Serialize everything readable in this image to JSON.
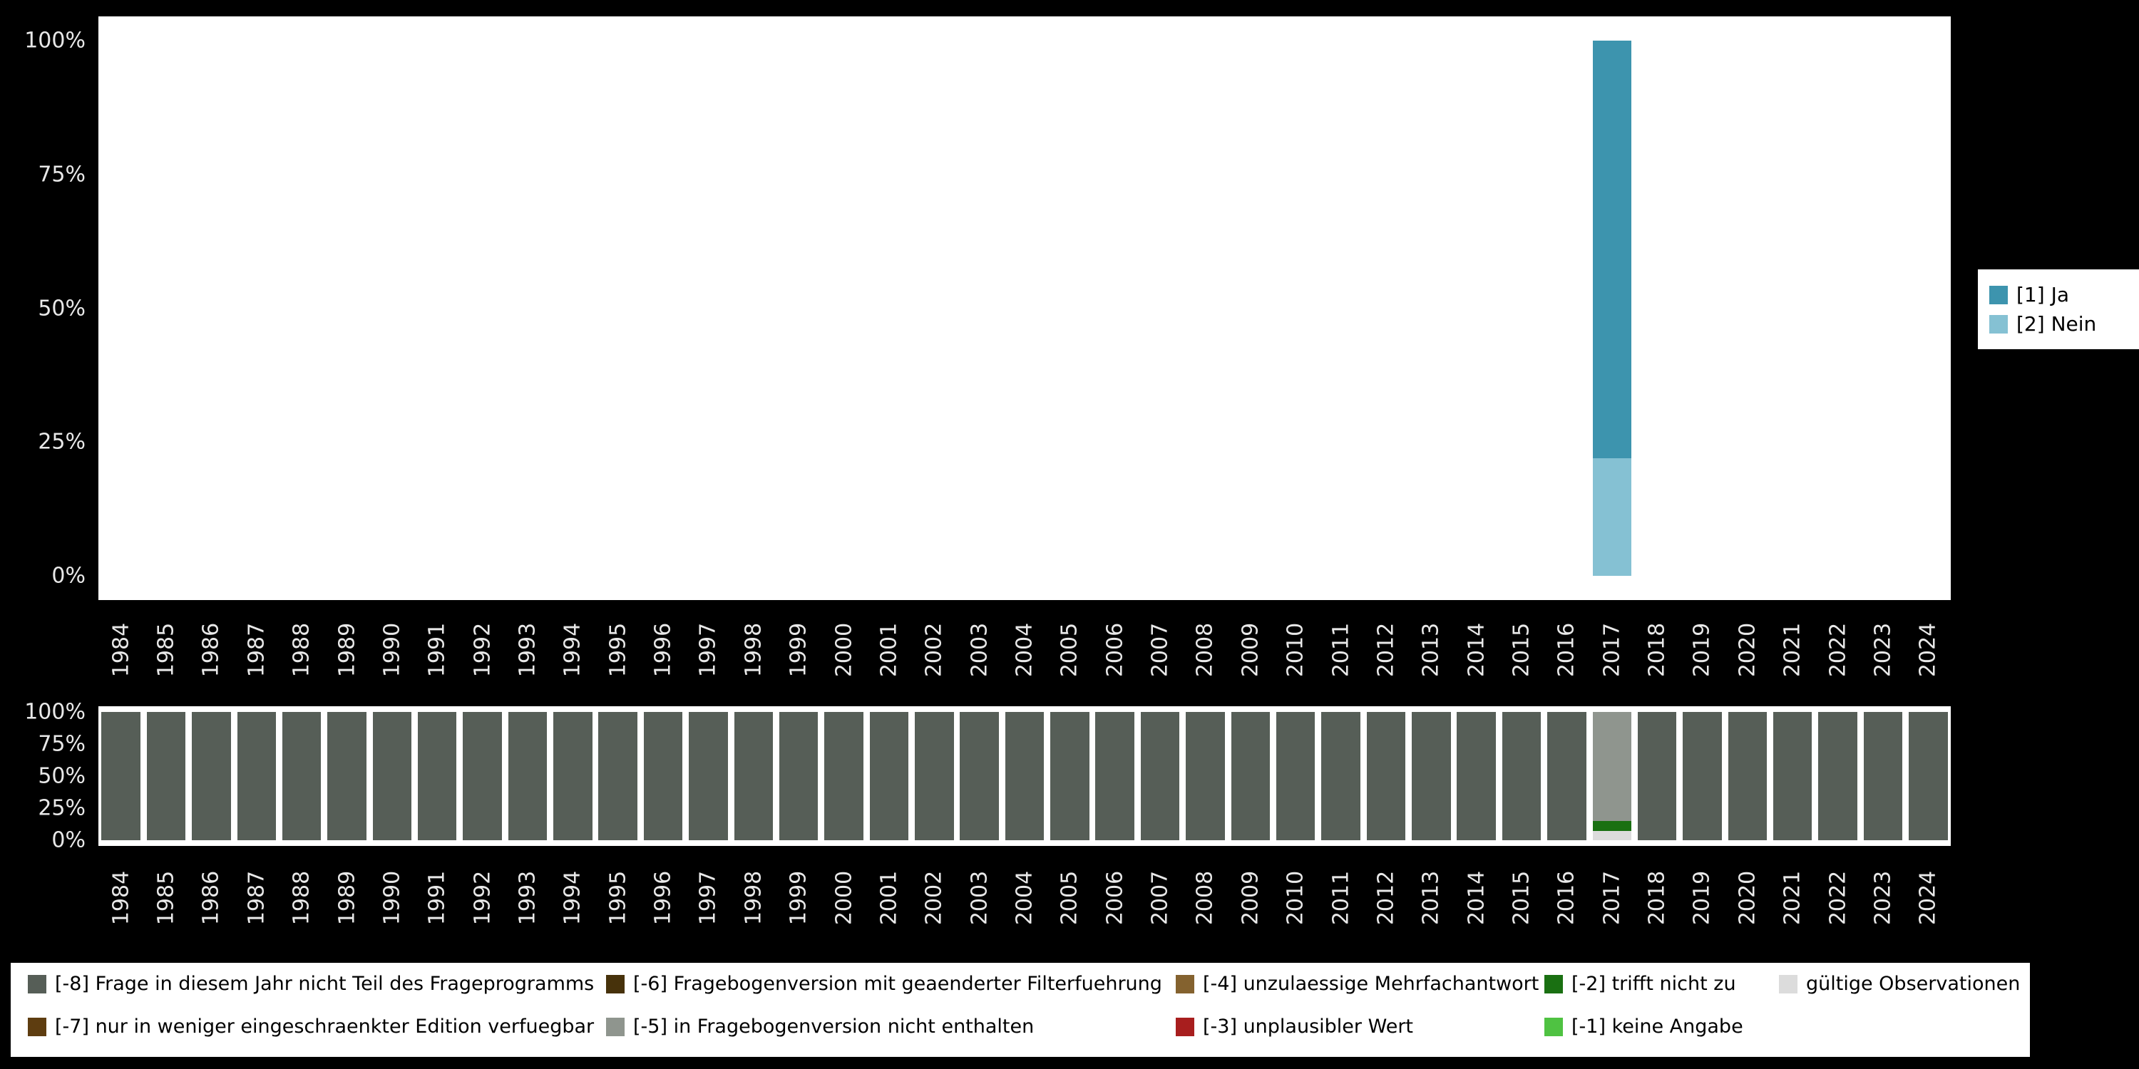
{
  "axes": {
    "y_ticks_top_to_bottom": [
      "100%",
      "75%",
      "50%",
      "25%",
      "0%"
    ]
  },
  "top_legend": {
    "items": [
      {
        "label": "[1] Ja",
        "color": "#3d94ae"
      },
      {
        "label": "[2] Nein",
        "color": "#85c1d3"
      }
    ]
  },
  "missing_legend": {
    "items": [
      {
        "label": "[-8] Frage in diesem Jahr nicht Teil des Frageprogramms",
        "color": "#565e57",
        "col": 0,
        "row": 0
      },
      {
        "label": "[-7] nur in weniger eingeschraenkter Edition verfuegbar",
        "color": "#5e3d10",
        "col": 0,
        "row": 1
      },
      {
        "label": "[-6] Fragebogenversion mit geaenderter Filterfuehrung",
        "color": "#47320b",
        "col": 1,
        "row": 0
      },
      {
        "label": "[-5] in Fragebogenversion nicht enthalten",
        "color": "#8f958e",
        "col": 1,
        "row": 1
      },
      {
        "label": "[-4] unzulaessige Mehrfachantwort",
        "color": "#84622f",
        "col": 2,
        "row": 0
      },
      {
        "label": "[-3] unplausibler Wert",
        "color": "#a81e1e",
        "col": 2,
        "row": 1
      },
      {
        "label": "[-2] trifft nicht zu",
        "color": "#1a7012",
        "col": 3,
        "row": 0
      },
      {
        "label": "[-1] keine Angabe",
        "color": "#4fc242",
        "col": 3,
        "row": 1
      },
      {
        "label": "gültige Observationen",
        "color": "#dcdcdc",
        "col": 4,
        "row": 0
      }
    ]
  },
  "chart_data": [
    {
      "type": "bar",
      "stacked": true,
      "title": "",
      "xlabel": "",
      "ylabel": "",
      "ylim": [
        0,
        100
      ],
      "grid": false,
      "legend_position": "right",
      "y_ticks": [
        "100%",
        "75%",
        "50%",
        "25%",
        "0%"
      ],
      "categories": [
        "1984",
        "1985",
        "1986",
        "1987",
        "1988",
        "1989",
        "1990",
        "1991",
        "1992",
        "1993",
        "1994",
        "1995",
        "1996",
        "1997",
        "1998",
        "1999",
        "2000",
        "2001",
        "2002",
        "2003",
        "2004",
        "2005",
        "2006",
        "2007",
        "2008",
        "2009",
        "2010",
        "2011",
        "2012",
        "2013",
        "2014",
        "2015",
        "2016",
        "2017",
        "2018",
        "2019",
        "2020",
        "2021",
        "2022",
        "2023",
        "2024"
      ],
      "series": [
        {
          "name": "[1] Ja",
          "color": "#3d94ae",
          "values": [
            0,
            0,
            0,
            0,
            0,
            0,
            0,
            0,
            0,
            0,
            0,
            0,
            0,
            0,
            0,
            0,
            0,
            0,
            0,
            0,
            0,
            0,
            0,
            0,
            0,
            0,
            0,
            0,
            0,
            0,
            0,
            0,
            0,
            78,
            0,
            0,
            0,
            0,
            0,
            0,
            0
          ]
        },
        {
          "name": "[2] Nein",
          "color": "#85c1d3",
          "values": [
            0,
            0,
            0,
            0,
            0,
            0,
            0,
            0,
            0,
            0,
            0,
            0,
            0,
            0,
            0,
            0,
            0,
            0,
            0,
            0,
            0,
            0,
            0,
            0,
            0,
            0,
            0,
            0,
            0,
            0,
            0,
            0,
            0,
            22,
            0,
            0,
            0,
            0,
            0,
            0,
            0
          ]
        }
      ]
    },
    {
      "type": "bar",
      "stacked": true,
      "title": "",
      "xlabel": "",
      "ylabel": "",
      "ylim": [
        0,
        100
      ],
      "grid": false,
      "legend_position": "bottom",
      "y_ticks": [
        "100%",
        "75%",
        "50%",
        "25%",
        "0%"
      ],
      "categories": [
        "1984",
        "1985",
        "1986",
        "1987",
        "1988",
        "1989",
        "1990",
        "1991",
        "1992",
        "1993",
        "1994",
        "1995",
        "1996",
        "1997",
        "1998",
        "1999",
        "2000",
        "2001",
        "2002",
        "2003",
        "2004",
        "2005",
        "2006",
        "2007",
        "2008",
        "2009",
        "2010",
        "2011",
        "2012",
        "2013",
        "2014",
        "2015",
        "2016",
        "2017",
        "2018",
        "2019",
        "2020",
        "2021",
        "2022",
        "2023",
        "2024"
      ],
      "series": [
        {
          "name": "[-8] Frage in diesem Jahr nicht Teil des Frageprogramms",
          "color": "#565e57",
          "values": [
            100,
            100,
            100,
            100,
            100,
            100,
            100,
            100,
            100,
            100,
            100,
            100,
            100,
            100,
            100,
            100,
            100,
            100,
            100,
            100,
            100,
            100,
            100,
            100,
            100,
            100,
            100,
            100,
            100,
            100,
            100,
            100,
            100,
            0,
            100,
            100,
            100,
            100,
            100,
            100,
            100
          ]
        },
        {
          "name": "[-5] in Fragebogenversion nicht enthalten",
          "color": "#8f958e",
          "values": [
            0,
            0,
            0,
            0,
            0,
            0,
            0,
            0,
            0,
            0,
            0,
            0,
            0,
            0,
            0,
            0,
            0,
            0,
            0,
            0,
            0,
            0,
            0,
            0,
            0,
            0,
            0,
            0,
            0,
            0,
            0,
            0,
            0,
            85,
            0,
            0,
            0,
            0,
            0,
            0,
            0
          ]
        },
        {
          "name": "[-2] trifft nicht zu",
          "color": "#1a7012",
          "values": [
            0,
            0,
            0,
            0,
            0,
            0,
            0,
            0,
            0,
            0,
            0,
            0,
            0,
            0,
            0,
            0,
            0,
            0,
            0,
            0,
            0,
            0,
            0,
            0,
            0,
            0,
            0,
            0,
            0,
            0,
            0,
            0,
            0,
            8,
            0,
            0,
            0,
            0,
            0,
            0,
            0
          ]
        },
        {
          "name": "gültige Observationen",
          "color": "#dcdcdc",
          "values": [
            0,
            0,
            0,
            0,
            0,
            0,
            0,
            0,
            0,
            0,
            0,
            0,
            0,
            0,
            0,
            0,
            0,
            0,
            0,
            0,
            0,
            0,
            0,
            0,
            0,
            0,
            0,
            0,
            0,
            0,
            0,
            0,
            0,
            7,
            0,
            0,
            0,
            0,
            0,
            0,
            0
          ]
        }
      ]
    }
  ]
}
